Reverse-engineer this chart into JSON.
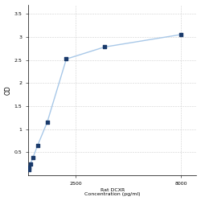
{
  "xlabel_line1": "2500",
  "xlabel_line2": "Rat DCXR",
  "xlabel_line3": "Concentration (pg/ml)",
  "ylabel": "OD",
  "x_values": [
    31.25,
    62.5,
    125,
    250,
    500,
    1000,
    2000,
    4000,
    8000
  ],
  "y_values": [
    0.13,
    0.18,
    0.25,
    0.38,
    0.65,
    1.15,
    2.52,
    2.78,
    3.05
  ],
  "line_color": "#a8c8e8",
  "marker_color": "#1a3a6b",
  "xlim_left": 0,
  "xlim_right": 8800,
  "ylim_bottom": 0,
  "ylim_top": 3.7,
  "yticks": [
    0.5,
    1.0,
    1.5,
    2.0,
    2.5,
    3.0,
    3.5
  ],
  "ytick_labels": [
    "0.5",
    "1",
    "1.5",
    "2",
    "2.5",
    "3",
    "3.5"
  ],
  "xtick_positions": [
    2500,
    8000
  ],
  "xtick_labels": [
    "2500",
    "8000"
  ],
  "grid_color": "#d0d0d0",
  "bg_color": "#ffffff",
  "fig_width": 2.5,
  "fig_height": 2.5,
  "dpi": 100
}
